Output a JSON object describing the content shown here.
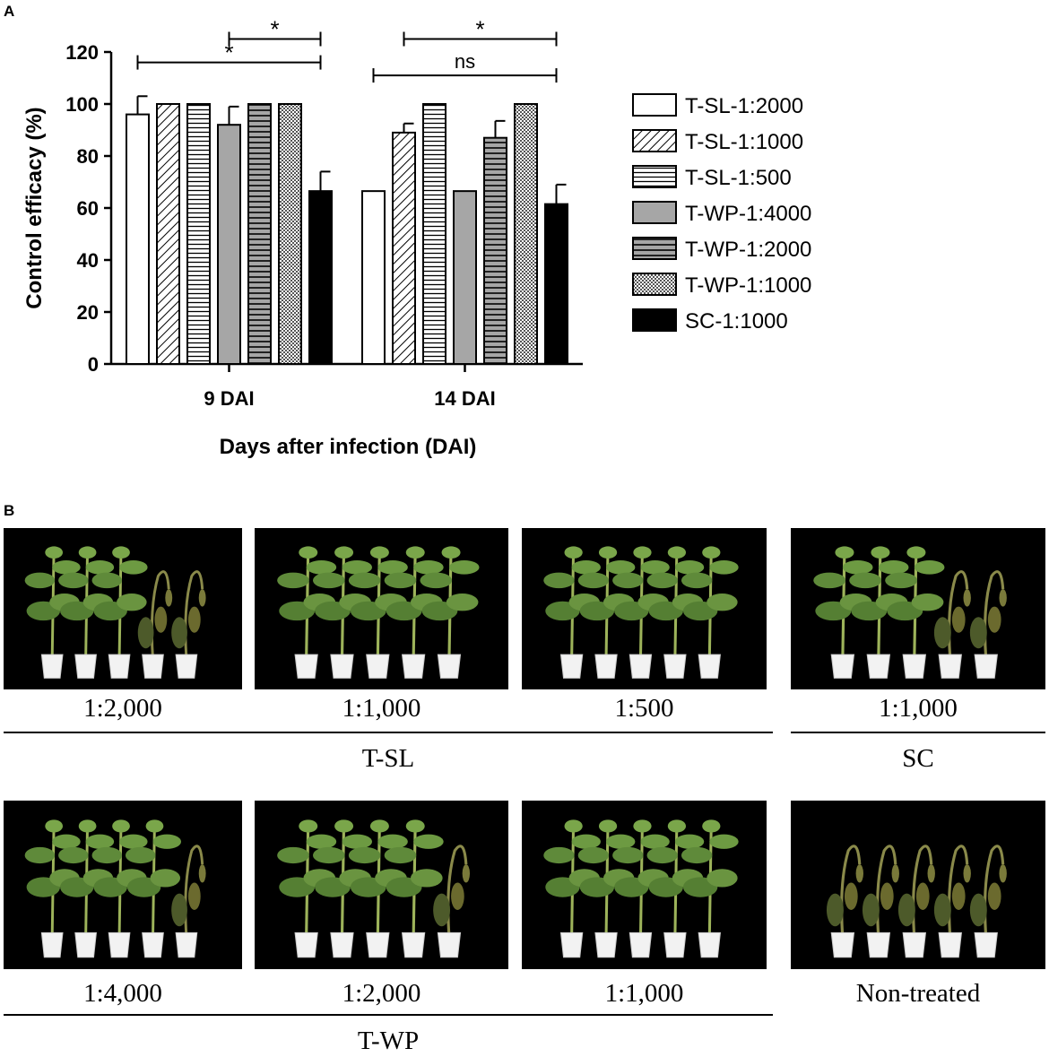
{
  "panel_a_label": "A",
  "panel_b_label": "B",
  "chart_data": {
    "type": "bar",
    "categories": [
      "9 DAI",
      "14 DAI"
    ],
    "xlabel": "Days after infection (DAI)",
    "ylabel": "Control efficacy (%)",
    "ylim": [
      0,
      120
    ],
    "yticks": [
      0,
      20,
      40,
      60,
      80,
      100,
      120
    ],
    "grid": false,
    "legend_position": "right",
    "series": [
      {
        "name": "T-SL-1:2000",
        "values": [
          96,
          66.5
        ],
        "errors": [
          7,
          0
        ],
        "fill": "white"
      },
      {
        "name": "T-SL-1:1000",
        "values": [
          100,
          89
        ],
        "errors": [
          0,
          3.5
        ],
        "fill": "diagonal-hatch"
      },
      {
        "name": "T-SL-1:500",
        "values": [
          100,
          100
        ],
        "errors": [
          0,
          0
        ],
        "fill": "horizontal-lines"
      },
      {
        "name": "T-WP-1:4000",
        "values": [
          92,
          66.5
        ],
        "errors": [
          7,
          0
        ],
        "fill": "gray"
      },
      {
        "name": "T-WP-1:2000",
        "values": [
          100,
          87
        ],
        "errors": [
          0,
          6.5
        ],
        "fill": "gray-horizontal-lines"
      },
      {
        "name": "T-WP-1:1000",
        "values": [
          100,
          100
        ],
        "errors": [
          0,
          0
        ],
        "fill": "checker"
      },
      {
        "name": "SC-1:1000",
        "values": [
          66.5,
          61.5
        ],
        "errors": [
          7.5,
          7.5
        ],
        "fill": "black"
      }
    ],
    "annotations": [
      {
        "text": "*",
        "category": "9 DAI",
        "from_series": 3,
        "to_series": 6,
        "level": 125
      },
      {
        "text": "*",
        "category": "9 DAI",
        "from_series": 0,
        "to_series": 6,
        "level": 116
      },
      {
        "text": "*",
        "category": "14 DAI",
        "from_series": 1,
        "to_series": 6,
        "level": 125
      },
      {
        "text": "ns",
        "category": "14 DAI",
        "from_series": 0,
        "to_series": 6,
        "level": 111
      }
    ]
  },
  "colors": {
    "gray": "#a6a6a6",
    "black": "#000000",
    "photo_background": "#000000",
    "plant_green": "#5f8a3a",
    "pot_white": "#f2f2f2"
  },
  "photos": {
    "row1": [
      {
        "caption": "1:2,000",
        "plants": [
          "healthy",
          "healthy",
          "healthy",
          "wilted",
          "wilted"
        ]
      },
      {
        "caption": "1:1,000",
        "plants": [
          "healthy",
          "healthy",
          "healthy",
          "healthy",
          "healthy"
        ]
      },
      {
        "caption": "1:500",
        "plants": [
          "healthy",
          "healthy",
          "healthy",
          "healthy",
          "healthy"
        ]
      },
      {
        "caption": "1:1,000",
        "plants": [
          "healthy",
          "healthy",
          "healthy",
          "wilted",
          "wilted"
        ]
      }
    ],
    "row2": [
      {
        "caption": "1:4,000",
        "plants": [
          "healthy",
          "healthy",
          "healthy",
          "healthy",
          "wilted"
        ]
      },
      {
        "caption": "1:2,000",
        "plants": [
          "healthy",
          "healthy",
          "healthy",
          "healthy",
          "wilted"
        ]
      },
      {
        "caption": "1:1,000",
        "plants": [
          "healthy",
          "healthy",
          "healthy",
          "healthy",
          "healthy"
        ]
      },
      {
        "caption": "Non-treated",
        "plants": [
          "wilted",
          "wilted",
          "wilted",
          "wilted",
          "wilted"
        ]
      }
    ],
    "group_labels": {
      "tsl": "T-SL",
      "sc": "SC",
      "twp": "T-WP"
    }
  }
}
